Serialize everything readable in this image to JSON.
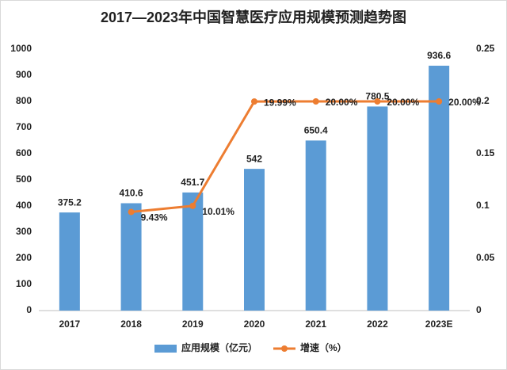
{
  "chart_data": {
    "type": "bar-line",
    "title": "2017—2023年中国智慧医疗应用规模预测趋势图",
    "categories": [
      "2017",
      "2018",
      "2019",
      "2020",
      "2021",
      "2022",
      "2023E"
    ],
    "series": [
      {
        "name": "应用规模（亿元）",
        "type": "bar",
        "color": "#5b9bd5",
        "values": [
          375.2,
          410.6,
          451.7,
          542,
          650.4,
          780.5,
          936.6
        ]
      },
      {
        "name": "增速（%）",
        "type": "line",
        "axis": "y2",
        "color": "#ed7d31",
        "values": [
          null,
          0.0943,
          0.1001,
          0.1999,
          0.2,
          0.2,
          0.2
        ],
        "value_labels": [
          null,
          "9.43%",
          "10.01%",
          "19.99%",
          "20.00%",
          "20.00%",
          "20.00%"
        ]
      }
    ],
    "ylim": [
      0,
      1000
    ],
    "yticks": [
      0,
      100,
      200,
      300,
      400,
      500,
      600,
      700,
      800,
      900,
      1000
    ],
    "y2lim": [
      0,
      0.25
    ],
    "y2ticks": [
      0,
      0.05,
      0.1,
      0.15,
      0.2,
      0.25
    ],
    "grid": false,
    "legend": "bottom"
  }
}
